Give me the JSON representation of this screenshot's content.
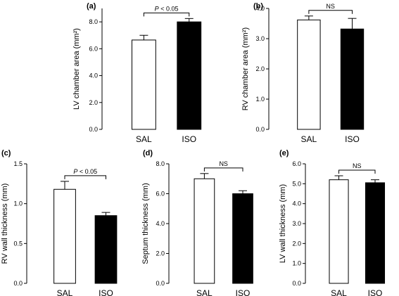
{
  "chart_data": [
    {
      "type": "bar",
      "panel_label": "(a)",
      "ylabel": "LV chamber area (mm²)",
      "categories": [
        "SAL",
        "ISO"
      ],
      "values": [
        6.65,
        8.0
      ],
      "errors": [
        0.35,
        0.25
      ],
      "fills": [
        "#ffffff",
        "#000000"
      ],
      "ylim": [
        0,
        9.0
      ],
      "yticks": [
        "0.0",
        "2.0",
        "4.0",
        "6.0",
        "8.0"
      ],
      "ytick_values": [
        0,
        2,
        4,
        6,
        8
      ],
      "significance": "P < 0.05",
      "sig_italic_p": true
    },
    {
      "type": "bar",
      "panel_label": "(b)",
      "ylabel": "RV chamber area (mm²)",
      "categories": [
        "SAL",
        "ISO"
      ],
      "values": [
        3.62,
        3.32
      ],
      "errors": [
        0.13,
        0.35
      ],
      "fills": [
        "#ffffff",
        "#000000"
      ],
      "ylim": [
        0,
        4.0
      ],
      "yticks": [
        "0.0",
        "1.0",
        "2.0",
        "3.0",
        "4.0"
      ],
      "ytick_values": [
        0,
        1,
        2,
        3,
        4
      ],
      "significance": "NS",
      "sig_italic_p": false
    },
    {
      "type": "bar",
      "panel_label": "(c)",
      "ylabel": "RV wall thickness (mm)",
      "categories": [
        "SAL",
        "ISO"
      ],
      "values": [
        1.18,
        0.85
      ],
      "errors": [
        0.1,
        0.04
      ],
      "fills": [
        "#ffffff",
        "#000000"
      ],
      "ylim": [
        0,
        1.5
      ],
      "yticks": [
        "0.0",
        "0.5",
        "1.0",
        "1.5"
      ],
      "ytick_values": [
        0,
        0.5,
        1.0,
        1.5
      ],
      "significance": "P < 0.05",
      "sig_italic_p": true
    },
    {
      "type": "bar",
      "panel_label": "(d)",
      "ylabel": "Septum thickness (mm)",
      "categories": [
        "SAL",
        "ISO"
      ],
      "values": [
        7.0,
        6.0
      ],
      "errors": [
        0.35,
        0.2
      ],
      "fills": [
        "#ffffff",
        "#000000"
      ],
      "ylim": [
        0,
        8.0
      ],
      "yticks": [
        "0.0",
        "2.0",
        "4.0",
        "6.0",
        "8.0"
      ],
      "ytick_values": [
        0,
        2,
        4,
        6,
        8
      ],
      "significance": "NS",
      "sig_italic_p": false
    },
    {
      "type": "bar",
      "panel_label": "(e)",
      "ylabel": "LV wall thickness (mm)",
      "categories": [
        "SAL",
        "ISO"
      ],
      "values": [
        5.2,
        5.05
      ],
      "errors": [
        0.2,
        0.15
      ],
      "fills": [
        "#ffffff",
        "#000000"
      ],
      "ylim": [
        0,
        6.0
      ],
      "yticks": [
        "0.0",
        "1.0",
        "2.0",
        "3.0",
        "4.0",
        "5.0",
        "6.0"
      ],
      "ytick_values": [
        0,
        1,
        2,
        3,
        4,
        5,
        6
      ],
      "significance": "NS",
      "sig_italic_p": false
    }
  ]
}
